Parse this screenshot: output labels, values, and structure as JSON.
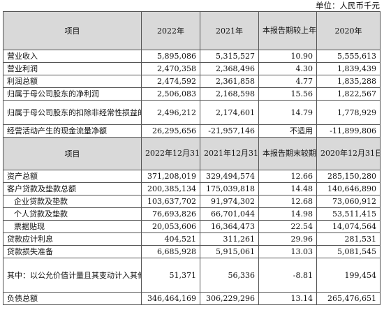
{
  "unit_label": "单位：人民币千元",
  "header1": {
    "item": "项目",
    "y2022": "2022年",
    "y2021": "2021年",
    "change": "本报告期较上年同期增减(%)",
    "y2020": "2020年"
  },
  "section1_rows": [
    {
      "label": "营业收入",
      "v2022": "5,895,086",
      "v2021": "5,315,527",
      "chg": "10.90",
      "v2020": "5,555,613"
    },
    {
      "label": "营业利润",
      "v2022": "2,470,358",
      "v2021": "2,368,496",
      "chg": "4.30",
      "v2020": "1,839,439"
    },
    {
      "label": "利润总额",
      "v2022": "2,474,592",
      "v2021": "2,361,858",
      "chg": "4.77",
      "v2020": "1,835,288"
    },
    {
      "label": "归属于母公司股东的净利润",
      "v2022": "2,506,083",
      "v2021": "2,168,598",
      "chg": "15.56",
      "v2020": "1,822,567"
    },
    {
      "label": "归属于母公司股东的扣除非经常性损益的净利润",
      "v2022": "2,496,212",
      "v2021": "2,174,601",
      "chg": "14.79",
      "v2020": "1,778,929"
    },
    {
      "label": "经营活动产生的现金流量净额",
      "v2022": "26,295,656",
      "v2021": "-21,957,146",
      "chg": "不适用",
      "v2020": "-11,899,806"
    }
  ],
  "header2": {
    "item": "项目",
    "d2022": "2022年12月31日",
    "d2021": "2021年12月31日",
    "change": "本报告期末较期初增减(%)",
    "d2020": "2020年12月31日"
  },
  "section2_rows": [
    {
      "label": "资产总额",
      "v2022": "371,208,019",
      "v2021": "329,494,574",
      "chg": "12.66",
      "v2020": "285,150,280"
    },
    {
      "label": "客户贷款及垫款总额",
      "v2022": "200,385,134",
      "v2021": "175,039,818",
      "chg": "14.48",
      "v2020": "140,646,890"
    },
    {
      "label": "企业贷款及垫款",
      "v2022": "103,637,702",
      "v2021": "91,974,302",
      "chg": "12.68",
      "v2020": "73,060,912"
    },
    {
      "label": "个人贷款及垫款",
      "v2022": "76,693,826",
      "v2021": "66,701,044",
      "chg": "14.98",
      "v2020": "53,511,415"
    },
    {
      "label": "票据贴现",
      "v2022": "20,053,606",
      "v2021": "16,364,473",
      "chg": "22.54",
      "v2020": "14,074,564"
    },
    {
      "label": "贷款应计利息",
      "v2022": "404,521",
      "v2021": "311,261",
      "chg": "29.96",
      "v2020": "281,531"
    },
    {
      "label": "贷款损失准备",
      "v2022": "6,685,928",
      "v2021": "5,915,061",
      "chg": "13.03",
      "v2020": "5,081,545"
    },
    {
      "label": "其中：以公允价值计量且其变动计入其他综合收益的贷款损失准备",
      "v2022": "51,371",
      "v2021": "56,336",
      "chg": "-8.81",
      "v2020": "199,454"
    },
    {
      "label": "负债总额",
      "v2022": "346,464,169",
      "v2021": "306,229,296",
      "chg": "13.14",
      "v2020": "265,476,651"
    }
  ]
}
